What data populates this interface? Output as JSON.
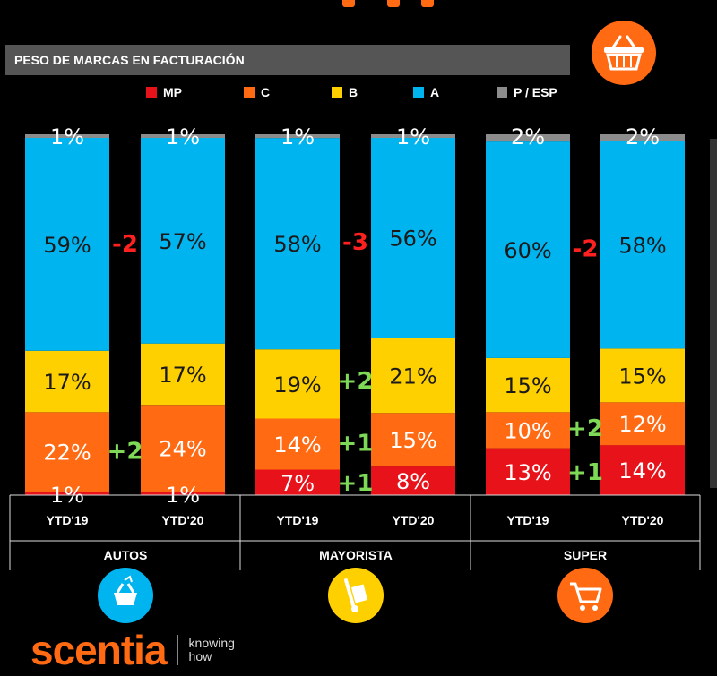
{
  "header": {
    "title": "PESO DE MARCAS EN FACTURACIÓN"
  },
  "brand": {
    "logo_text": "scentia",
    "tagline_line1": "knowing",
    "tagline_line2": "how"
  },
  "icons": {
    "top": "shopping-basket-icon",
    "categories": [
      "basket-hand-icon",
      "hand-truck-icon",
      "shopping-cart-icon"
    ]
  },
  "colors": {
    "MP": "#e8121a",
    "C": "#ff6a13",
    "B": "#ffd000",
    "A": "#00b4f0",
    "P / ESP": "#8c8c8c",
    "accent": "#ff6a13",
    "up": "#7ed957",
    "down": "#ff2020"
  },
  "chart_data": {
    "type": "bar",
    "stacked": true,
    "title": "PESO DE MARCAS EN FACTURACIÓN",
    "legend": [
      "MP",
      "C",
      "B",
      "A",
      "P / ESP"
    ],
    "groups": [
      "AUTOS",
      "MAYORISTA",
      "SUPER"
    ],
    "bars": [
      {
        "group": "AUTOS",
        "label": "YTD'19",
        "values": {
          "MP": 1,
          "C": 22,
          "B": 17,
          "A": 59,
          "P / ESP": 1
        }
      },
      {
        "group": "AUTOS",
        "label": "YTD'20",
        "values": {
          "MP": 1,
          "C": 24,
          "B": 17,
          "A": 57,
          "P / ESP": 1
        }
      },
      {
        "group": "MAYORISTA",
        "label": "YTD'19",
        "values": {
          "MP": 7,
          "C": 14,
          "B": 19,
          "A": 58,
          "P / ESP": 1
        }
      },
      {
        "group": "MAYORISTA",
        "label": "YTD'20",
        "values": {
          "MP": 8,
          "C": 15,
          "B": 21,
          "A": 56,
          "P / ESP": 1
        }
      },
      {
        "group": "SUPER",
        "label": "YTD'19",
        "values": {
          "MP": 13,
          "C": 10,
          "B": 15,
          "A": 60,
          "P / ESP": 2
        }
      },
      {
        "group": "SUPER",
        "label": "YTD'20",
        "values": {
          "MP": 14,
          "C": 12,
          "B": 15,
          "A": 58,
          "P / ESP": 2
        }
      }
    ],
    "deltas": [
      {
        "group": "AUTOS",
        "series": "A",
        "text": "-2"
      },
      {
        "group": "AUTOS",
        "series": "C",
        "text": "+2"
      },
      {
        "group": "MAYORISTA",
        "series": "A",
        "text": "-3"
      },
      {
        "group": "MAYORISTA",
        "series": "B",
        "text": "+2"
      },
      {
        "group": "MAYORISTA",
        "series": "C",
        "text": "+1"
      },
      {
        "group": "MAYORISTA",
        "series": "MP",
        "text": "+1"
      },
      {
        "group": "SUPER",
        "series": "A",
        "text": "-2"
      },
      {
        "group": "SUPER",
        "series": "C",
        "text": "+2"
      },
      {
        "group": "SUPER",
        "series": "MP",
        "text": "+1"
      }
    ]
  }
}
